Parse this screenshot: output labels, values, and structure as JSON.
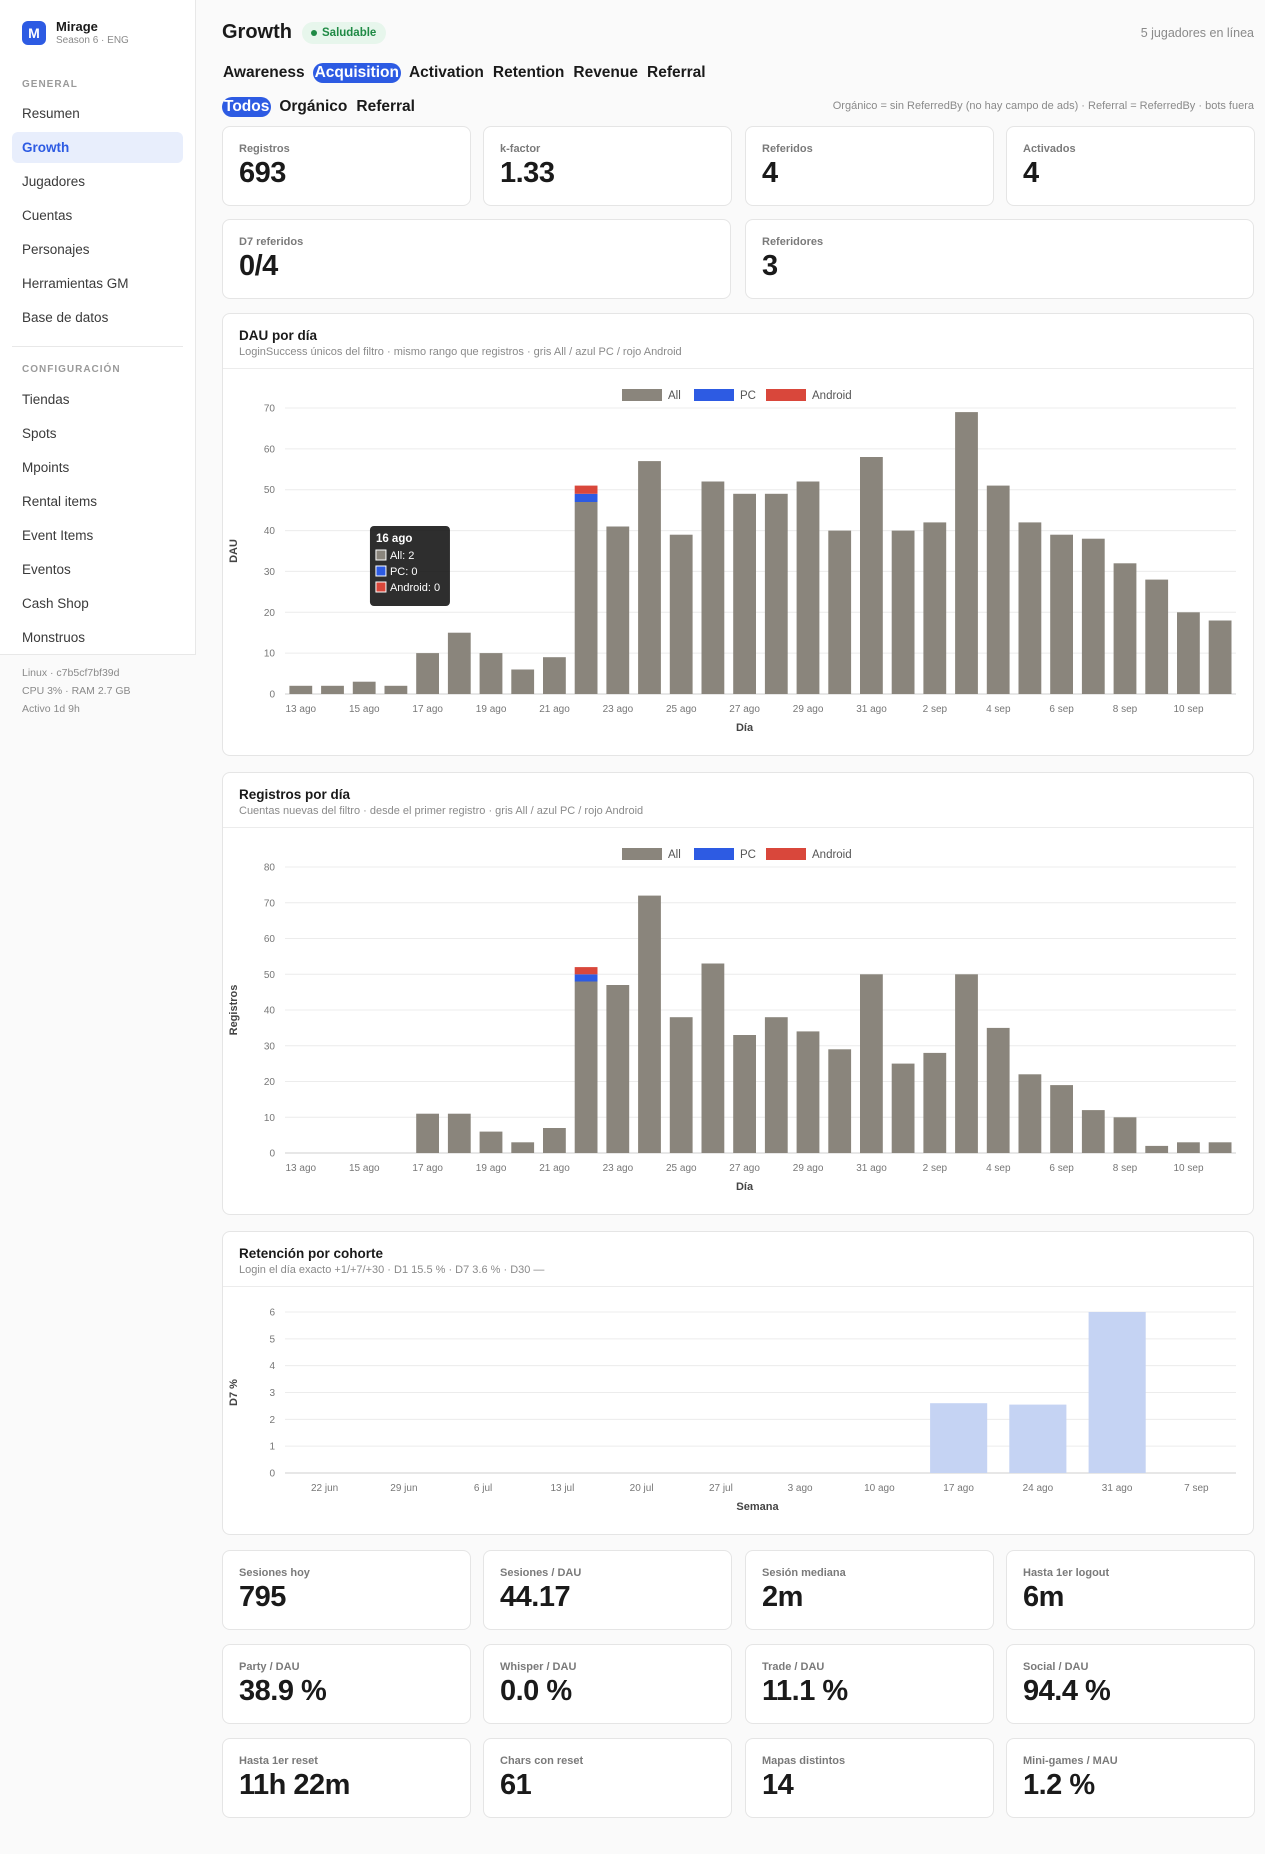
{
  "sidebar": {
    "brand": {
      "name": "Mirage",
      "subtitle": "Season 6 · ENG",
      "logo_letter": "M"
    },
    "general_title": "GENERAL",
    "general_items": [
      "Resumen",
      "Growth",
      "Jugadores",
      "Cuentas",
      "Personajes",
      "Herramientas GM",
      "Base de datos"
    ],
    "config_title": "CONFIGURACIÓN",
    "config_items": [
      "Tiendas",
      "Spots",
      "Mpoints",
      "Rental items",
      "Event Items",
      "Eventos",
      "Cash Shop",
      "Monstruos"
    ],
    "active_item": "Growth",
    "sysinfo": [
      "Linux · c7b5cf7bf39d",
      "CPU 3% · RAM 2.7 GB",
      "Activo 1d 9h"
    ]
  },
  "header": {
    "title": "Growth",
    "status": "Saludable",
    "online": "5 jugadores en línea"
  },
  "tabs": [
    "Awareness",
    "Acquisition",
    "Activation",
    "Retention",
    "Revenue",
    "Referral"
  ],
  "active_tab": "Acquisition",
  "filters": [
    "Todos",
    "Orgánico",
    "Referral"
  ],
  "active_filter": "Todos",
  "filter_note": "Orgánico = sin ReferredBy (no hay campo de ads) · Referral = ReferredBy · bots fuera",
  "kpis_top": [
    {
      "label": "Registros",
      "value": "693"
    },
    {
      "label": "k-factor",
      "value": "1.33"
    },
    {
      "label": "Referidos",
      "value": "4"
    },
    {
      "label": "Activados",
      "value": "4"
    }
  ],
  "kpis_second": [
    {
      "label": "D7 referidos",
      "value": "0/4"
    },
    {
      "label": "Referidores",
      "value": "3"
    }
  ],
  "kpis_bottom": [
    {
      "label": "Sesiones hoy",
      "value": "795"
    },
    {
      "label": "Sesiones / DAU",
      "value": "44.17"
    },
    {
      "label": "Sesión mediana",
      "value": "2m"
    },
    {
      "label": "Hasta 1er logout",
      "value": "6m"
    },
    {
      "label": "Party / DAU",
      "value": "38.9 %"
    },
    {
      "label": "Whisper / DAU",
      "value": "0.0 %"
    },
    {
      "label": "Trade / DAU",
      "value": "11.1 %"
    },
    {
      "label": "Social / DAU",
      "value": "94.4 %"
    },
    {
      "label": "Hasta 1er reset",
      "value": "11h 22m"
    },
    {
      "label": "Chars con reset",
      "value": "61"
    },
    {
      "label": "Mapas distintos",
      "value": "14"
    },
    {
      "label": "Mini-games / MAU",
      "value": "1.2 %"
    }
  ],
  "colors": {
    "all": "#8a857c",
    "pc": "#2d5be3",
    "android": "#d9473b",
    "retention": "#c5d3f3",
    "accent": "#2d5be3"
  },
  "chart_data": [
    {
      "type": "bar",
      "title": "DAU por día",
      "subtitle": "LoginSuccess únicos del filtro · mismo rango que registros · gris All / azul PC / rojo Android",
      "xlabel": "Día",
      "ylabel": "DAU",
      "ylim": [
        0,
        70
      ],
      "yticks": [
        0,
        10,
        20,
        30,
        40,
        50,
        60,
        70
      ],
      "legend": [
        "All",
        "PC",
        "Android"
      ],
      "categories": [
        "13 ago",
        "14 ago",
        "15 ago",
        "16 ago",
        "17 ago",
        "18 ago",
        "19 ago",
        "20 ago",
        "21 ago",
        "22 ago",
        "23 ago",
        "24 ago",
        "25 ago",
        "26 ago",
        "27 ago",
        "28 ago",
        "29 ago",
        "30 ago",
        "31 ago",
        "1 sep",
        "2 sep",
        "3 sep",
        "4 sep",
        "5 sep",
        "6 sep",
        "7 sep",
        "8 sep",
        "9 sep",
        "10 sep",
        "11 sep"
      ],
      "tick_labels": [
        "13 ago",
        "15 ago",
        "17 ago",
        "19 ago",
        "21 ago",
        "23 ago",
        "25 ago",
        "27 ago",
        "29 ago",
        "31 ago",
        "2 sep",
        "4 sep",
        "6 sep",
        "8 sep",
        "10 sep"
      ],
      "series": [
        {
          "name": "All",
          "values": [
            2,
            2,
            3,
            2,
            10,
            15,
            10,
            6,
            9,
            47,
            41,
            57,
            39,
            52,
            49,
            49,
            52,
            40,
            58,
            40,
            42,
            69,
            51,
            42,
            39,
            38,
            32,
            28,
            20,
            18
          ]
        },
        {
          "name": "PC",
          "values": [
            0,
            0,
            0,
            0,
            0,
            0,
            0,
            0,
            0,
            2,
            0,
            0,
            0,
            0,
            0,
            0,
            0,
            0,
            0,
            0,
            0,
            0,
            0,
            0,
            0,
            0,
            0,
            0,
            0,
            0
          ]
        },
        {
          "name": "Android",
          "values": [
            0,
            0,
            0,
            0,
            0,
            0,
            0,
            0,
            0,
            2,
            0,
            0,
            0,
            0,
            0,
            0,
            0,
            0,
            0,
            0,
            0,
            0,
            0,
            0,
            0,
            0,
            0,
            0,
            0,
            0
          ]
        }
      ],
      "tooltip": {
        "title": "16 ago",
        "lines": [
          "All: 2",
          "PC: 0",
          "Android: 0"
        ]
      }
    },
    {
      "type": "bar",
      "title": "Registros por día",
      "subtitle": "Cuentas nuevas del filtro · desde el primer registro · gris All / azul PC / rojo Android",
      "xlabel": "Día",
      "ylabel": "Registros",
      "ylim": [
        0,
        80
      ],
      "yticks": [
        0,
        10,
        20,
        30,
        40,
        50,
        60,
        70,
        80
      ],
      "legend": [
        "All",
        "PC",
        "Android"
      ],
      "categories": [
        "13 ago",
        "14 ago",
        "15 ago",
        "16 ago",
        "17 ago",
        "18 ago",
        "19 ago",
        "20 ago",
        "21 ago",
        "22 ago",
        "23 ago",
        "24 ago",
        "25 ago",
        "26 ago",
        "27 ago",
        "28 ago",
        "29 ago",
        "30 ago",
        "31 ago",
        "1 sep",
        "2 sep",
        "3 sep",
        "4 sep",
        "5 sep",
        "6 sep",
        "7 sep",
        "8 sep",
        "9 sep",
        "10 sep",
        "11 sep"
      ],
      "tick_labels": [
        "13 ago",
        "15 ago",
        "17 ago",
        "19 ago",
        "21 ago",
        "23 ago",
        "25 ago",
        "27 ago",
        "29 ago",
        "31 ago",
        "2 sep",
        "4 sep",
        "6 sep",
        "8 sep",
        "10 sep"
      ],
      "series": [
        {
          "name": "All",
          "values": [
            0,
            0,
            0,
            0,
            11,
            11,
            6,
            3,
            7,
            48,
            47,
            72,
            38,
            53,
            33,
            38,
            34,
            29,
            50,
            25,
            28,
            50,
            35,
            22,
            19,
            12,
            10,
            2,
            3,
            3
          ]
        },
        {
          "name": "PC",
          "values": [
            0,
            0,
            0,
            0,
            0,
            0,
            0,
            0,
            0,
            2,
            0,
            0,
            0,
            0,
            0,
            0,
            0,
            0,
            0,
            0,
            0,
            0,
            0,
            0,
            0,
            0,
            0,
            0,
            0,
            0
          ]
        },
        {
          "name": "Android",
          "values": [
            0,
            0,
            0,
            0,
            0,
            0,
            0,
            0,
            0,
            2,
            0,
            0,
            0,
            0,
            0,
            0,
            0,
            0,
            0,
            0,
            0,
            0,
            0,
            0,
            0,
            0,
            0,
            0,
            0,
            0
          ]
        }
      ]
    },
    {
      "type": "bar",
      "title": "Retención por cohorte",
      "subtitle": "Login el día exacto +1/+7/+30 · D1 15.5 % · D7 3.6 % · D30 —",
      "xlabel": "Semana",
      "ylabel": "D7 %",
      "ylim": [
        0,
        6
      ],
      "yticks": [
        0,
        1,
        2,
        3,
        4,
        5,
        6
      ],
      "categories": [
        "22 jun",
        "29 jun",
        "6 jul",
        "13 jul",
        "20 jul",
        "27 jul",
        "3 ago",
        "10 ago",
        "17 ago",
        "24 ago",
        "31 ago",
        "7 sep"
      ],
      "values": [
        0,
        0,
        0,
        0,
        0,
        0,
        0,
        0,
        2.6,
        2.55,
        6,
        0
      ]
    }
  ]
}
